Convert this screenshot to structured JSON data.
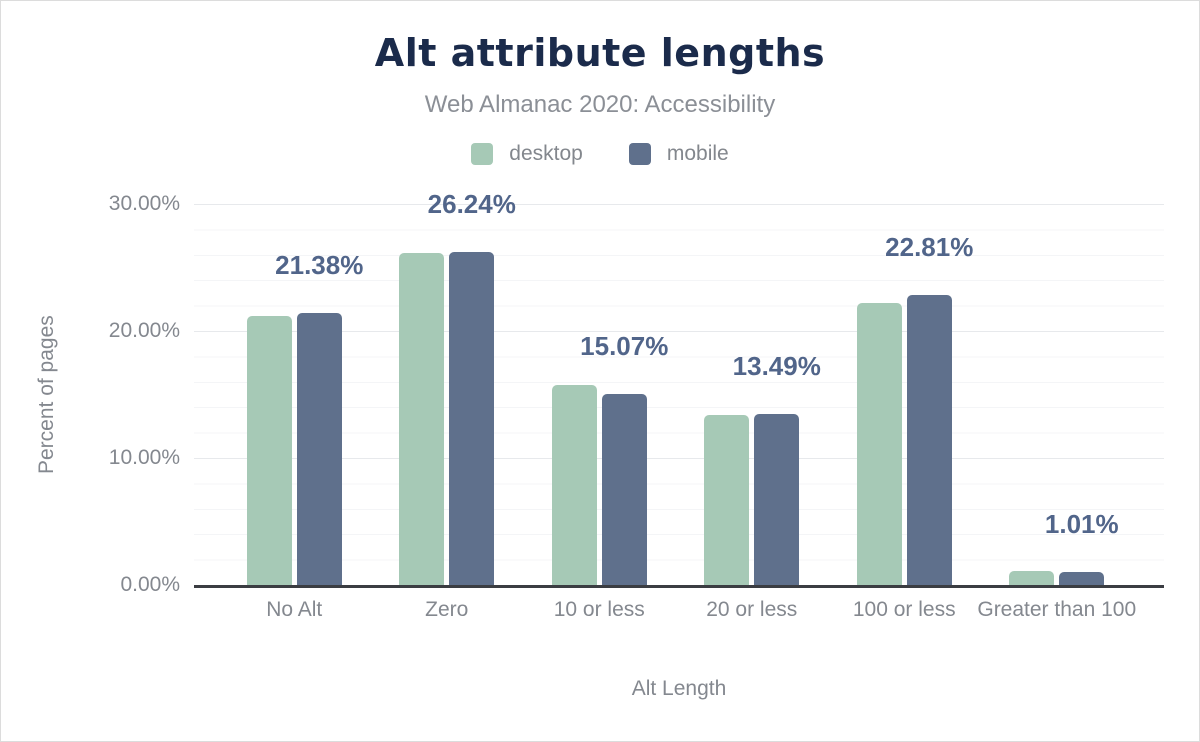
{
  "title": "Alt attribute lengths",
  "subtitle": "Web Almanac 2020: Accessibility",
  "legend": [
    {
      "label": "desktop",
      "color": "#a6c9b6"
    },
    {
      "label": "mobile",
      "color": "#5f708c"
    }
  ],
  "colors": {
    "title": "#1b2b4b",
    "subtitle_text": "#8b8f96",
    "axis_text": "#84888f",
    "data_label": "#51658a",
    "baseline": "#3b3d42",
    "gridline_major": "#e7e9ec",
    "gridline_minor": "#f4f5f7",
    "desktop_bar": "#a6c9b6",
    "mobile_bar": "#5f708c"
  },
  "chart_data": {
    "type": "bar",
    "title": "Alt attribute lengths",
    "subtitle": "Web Almanac 2020: Accessibility",
    "categories": [
      "No Alt",
      "Zero",
      "10 or less",
      "20 or less",
      "100 or less",
      "Greater than 100"
    ],
    "series": [
      {
        "name": "desktop",
        "color": "#a6c9b6",
        "values": [
          21.19,
          26.13,
          15.74,
          13.42,
          22.19,
          1.1
        ]
      },
      {
        "name": "mobile",
        "color": "#5f708c",
        "values": [
          21.38,
          26.24,
          15.07,
          13.49,
          22.81,
          1.01
        ]
      }
    ],
    "data_labels": [
      "21.38%",
      "26.24%",
      "15.07%",
      "13.49%",
      "22.81%",
      "1.01%"
    ],
    "data_label_series": "mobile",
    "xlabel": "Alt Length",
    "ylabel": "Percent of pages",
    "ylim": [
      0,
      30
    ],
    "yticks": [
      "0.00%",
      "10.00%",
      "20.00%",
      "30.00%"
    ],
    "ytick_values": [
      0,
      10,
      20,
      30
    ],
    "grid": {
      "major_step_pct": 10,
      "minor_step_pct": 2,
      "gridlines": "on"
    },
    "legend_position": "top"
  }
}
